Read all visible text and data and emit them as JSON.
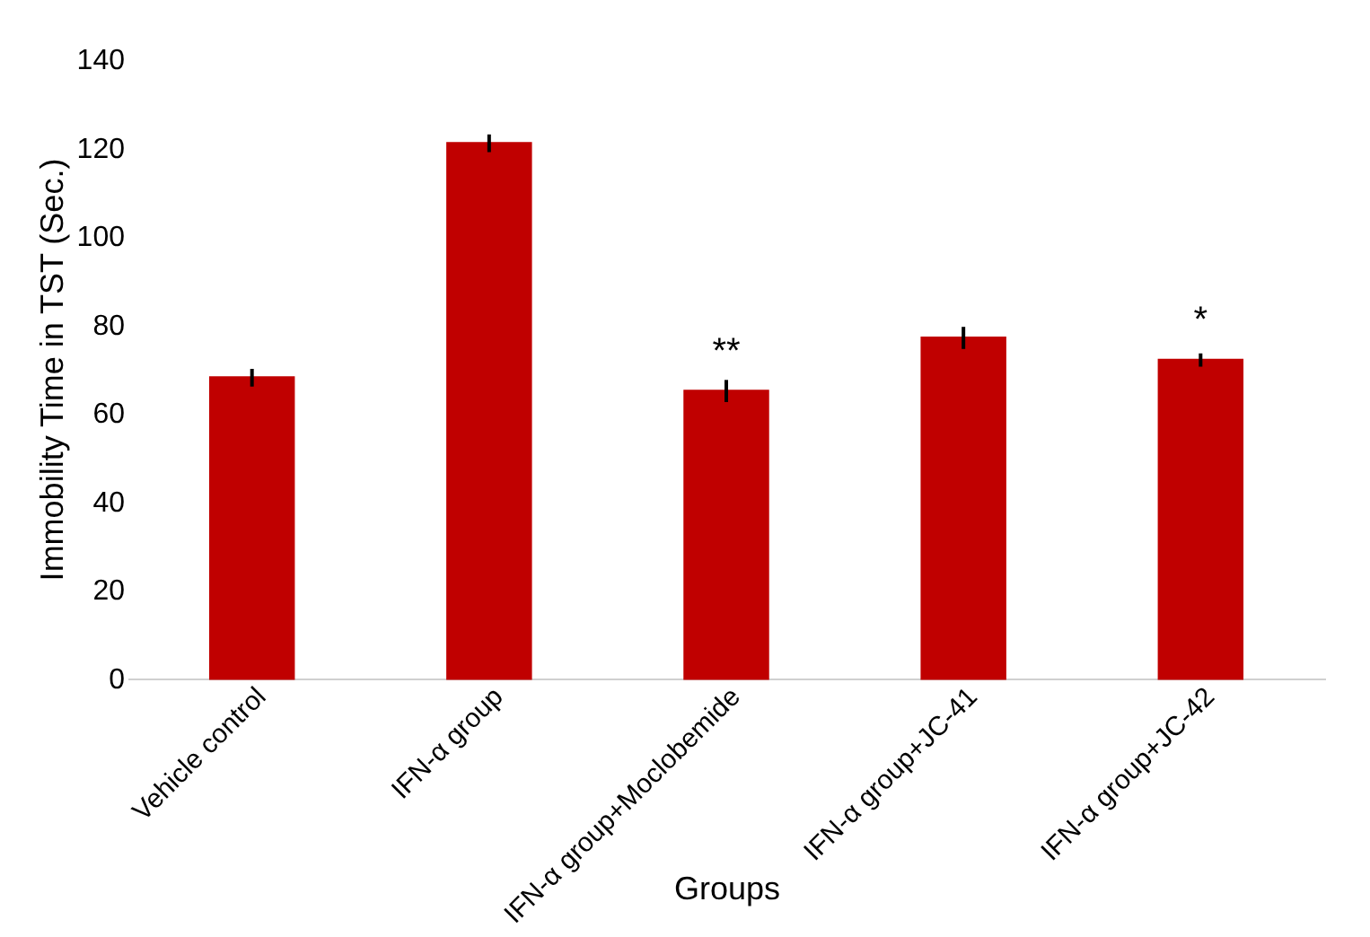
{
  "chart_data": {
    "type": "bar",
    "xlabel": "Groups",
    "ylabel": "Immobility Time in TST (Sec.)",
    "categories": [
      "Vehicle control",
      "IFN-α group",
      "IFN-α group+Moclobemide",
      "IFN-α group+JC-41",
      "IFN-α group+JC-42"
    ],
    "values": [
      68,
      121,
      65,
      77,
      72
    ],
    "errors": [
      2,
      2,
      2.5,
      2.5,
      1.5
    ],
    "colors": [
      "#c00000",
      "#c00000",
      "#c00000",
      "#c00000",
      "#c00000"
    ],
    "ylim": [
      0,
      140
    ],
    "yticks": [
      0,
      20,
      40,
      60,
      80,
      100,
      120,
      140
    ],
    "grid": false,
    "annotations": [
      {
        "text": "**",
        "x": "IFN-α group+Moclobemide",
        "y": 65
      },
      {
        "text": "*",
        "x": "IFN-α group+JC-42",
        "y": 72
      }
    ]
  }
}
